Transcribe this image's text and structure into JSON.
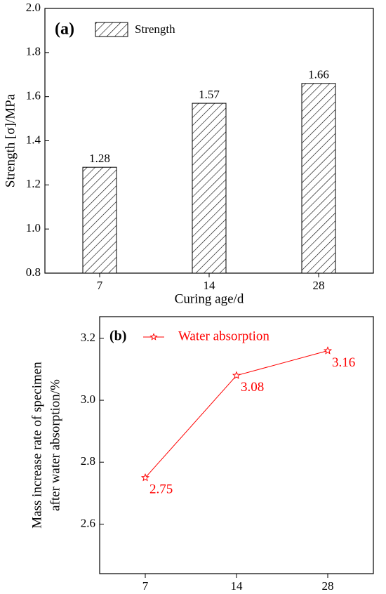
{
  "chart_data": [
    {
      "type": "bar",
      "panel_label": "(a)",
      "x_label": "Curing age/d",
      "y_label": "Strength [σ]/MPa",
      "categories": [
        "7",
        "14",
        "28"
      ],
      "series": [
        {
          "name": "Strength",
          "color": "#000000",
          "values": [
            1.28,
            1.57,
            1.66
          ]
        }
      ],
      "ylim": [
        0.8,
        2.0
      ],
      "yticks": [
        {
          "value": 0.8,
          "label": "0.8"
        },
        {
          "value": 1.0,
          "label": "1.0"
        },
        1.2,
        1.4,
        1.6,
        1.8,
        {
          "value": 2.0,
          "label": "2.0"
        }
      ],
      "hatch": true,
      "legend": "upper left"
    },
    {
      "type": "line",
      "panel_label": "(b)",
      "x_label": "Curing age/d",
      "y_label": [
        "Mass increase rate of specimen",
        "after water absorption/%"
      ],
      "categories": [
        "7",
        "14",
        "28"
      ],
      "series": [
        {
          "name": "Water absorption",
          "color": "#ff0000",
          "values": [
            2.75,
            3.08,
            3.16
          ]
        }
      ],
      "ylim": [
        2.44,
        3.27
      ],
      "yticks": [
        2.6,
        2.8,
        {
          "value": 3.0,
          "label": "3.0"
        },
        3.2
      ],
      "marker": "star",
      "legend": "upper left"
    }
  ]
}
